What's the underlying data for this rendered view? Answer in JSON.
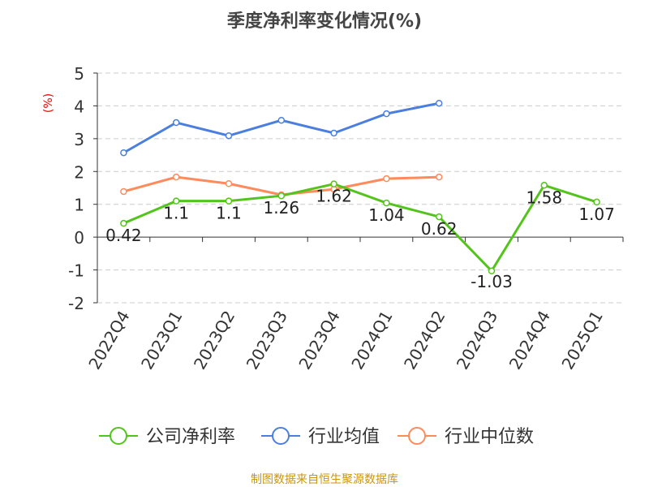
{
  "chart_data": {
    "type": "line",
    "title": "季度净利率变化情况(%)",
    "ylabel": "(%)",
    "ylim": [
      -2,
      5
    ],
    "yticks": [
      "-2",
      "-1",
      "0",
      "1",
      "2",
      "3",
      "4",
      "5"
    ],
    "grid": true,
    "legend_placement": "bottom",
    "categories": [
      "2022Q4",
      "2023Q1",
      "2023Q2",
      "2023Q3",
      "2023Q4",
      "2024Q1",
      "2024Q2",
      "2024Q3",
      "2024Q4",
      "2025Q1"
    ],
    "series": [
      {
        "name": "公司净利率",
        "color": "#52c41a",
        "values": [
          0.42,
          1.1,
          1.1,
          1.26,
          1.62,
          1.04,
          0.62,
          -1.03,
          1.58,
          1.07
        ],
        "labels": [
          "0.42",
          "1.1",
          "1.1",
          "1.26",
          "1.62",
          "1.04",
          "0.62",
          "-1.03",
          "1.58",
          "1.07"
        ]
      },
      {
        "name": "行业均值",
        "color": "#4a7fe0",
        "values": [
          2.57,
          3.49,
          3.09,
          3.56,
          3.17,
          3.76,
          4.08,
          null,
          null,
          null
        ]
      },
      {
        "name": "行业中位数",
        "color": "#ff8a5b",
        "values": [
          1.39,
          1.83,
          1.63,
          1.29,
          1.46,
          1.78,
          1.83,
          null,
          null,
          null
        ]
      }
    ],
    "source": "制图数据来自恒生聚源数据库"
  }
}
